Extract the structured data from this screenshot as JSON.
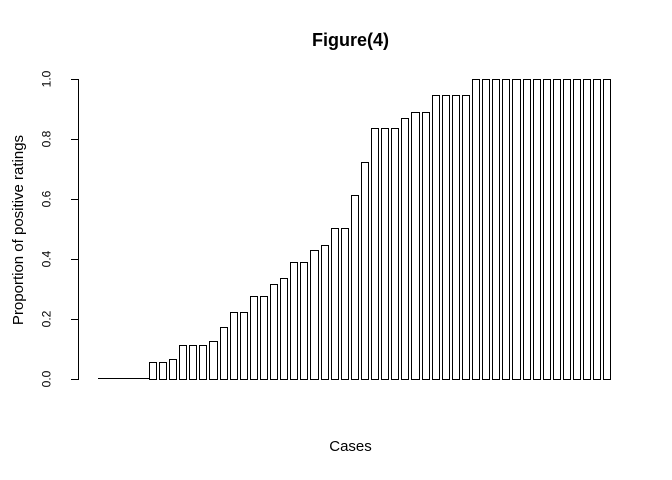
{
  "figure": {
    "background_color": "#ffffff",
    "bar_fill_color": "#ffffff",
    "bar_stroke_color": "#000000",
    "axis_color": "#000000"
  },
  "chart_data": {
    "type": "bar",
    "title": "Figure(4)",
    "xlabel": "Cases",
    "ylabel": "Proportion of positive ratings",
    "ylim": [
      0,
      1.0
    ],
    "yticks": [
      0.0,
      0.2,
      0.4,
      0.6,
      0.8,
      1.0
    ],
    "ytick_labels": [
      "0.0",
      "0.2",
      "0.4",
      "0.6",
      "0.8",
      "1.0"
    ],
    "xtick_labels": [],
    "grid": false,
    "legend": null,
    "bar_count": 51,
    "categories_note": "individual cases, unlabeled on x-axis, sorted ascending by proportion",
    "values": [
      0,
      0,
      0,
      0,
      0,
      0.057,
      0.057,
      0.065,
      0.112,
      0.112,
      0.112,
      0.125,
      0.174,
      0.224,
      0.224,
      0.278,
      0.278,
      0.318,
      0.336,
      0.389,
      0.389,
      0.431,
      0.447,
      0.503,
      0.503,
      0.613,
      0.722,
      0.838,
      0.838,
      0.838,
      0.869,
      0.891,
      0.891,
      0.945,
      0.945,
      0.945,
      0.945,
      1,
      1,
      1,
      1,
      1,
      1,
      1,
      1,
      1,
      1,
      1,
      1,
      1,
      1
    ]
  }
}
